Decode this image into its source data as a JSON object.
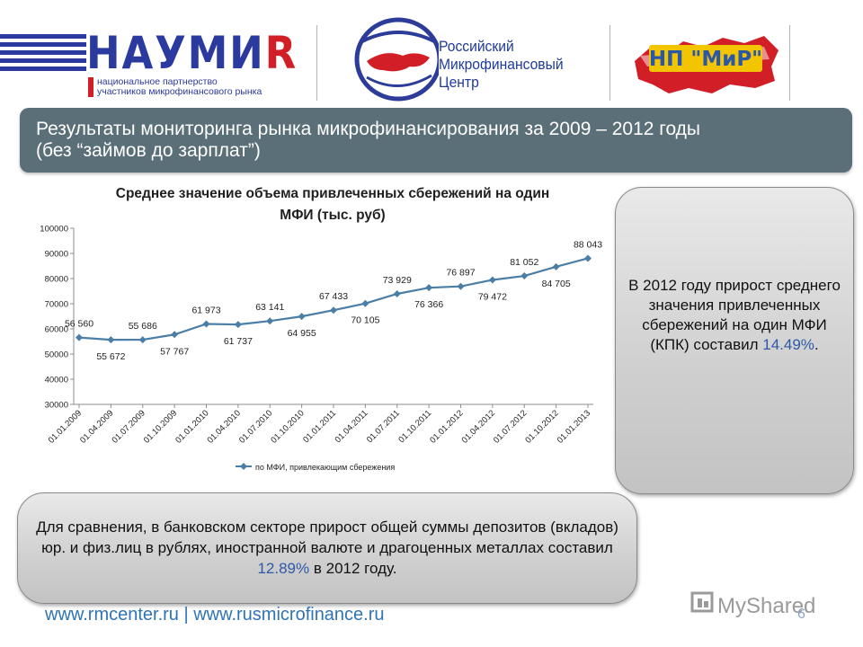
{
  "logos": {
    "naumir": {
      "name": "НАУМИ",
      "name_accent": "R",
      "subtitle_lines": [
        "национальное партнерство",
        "участников микрофинансового рынка"
      ]
    },
    "rmc": {
      "lines": [
        "Российский",
        "Микрофинансовый",
        "Центр"
      ]
    },
    "mir": {
      "name": "НП \"МиР\""
    }
  },
  "header": {
    "title_line1": "Результаты мониторинга рынка микрофинансирования за 2009 – 2012 годы",
    "title_line2": "(без “займов до зарплат”)"
  },
  "chart_data": {
    "type": "line",
    "title_line1": "Среднее значение объема привлеченных сбережений на один",
    "title_line2": "МФИ (тыс. руб)",
    "x": [
      "01.01.2009",
      "01.04.2009",
      "01.07.2009",
      "01.10.2009",
      "01.01.2010",
      "01.04.2010",
      "01.07.2010",
      "01.10.2010",
      "01.01.2011",
      "01.04.2011",
      "01.07.2011",
      "01.10.2011",
      "01.01.2012",
      "01.04.2012",
      "01.07.2012",
      "01.10.2012",
      "01.01.2013"
    ],
    "series": [
      {
        "name": "по МФИ, привлекающим сбережения",
        "values": [
          56560,
          55672,
          55686,
          57767,
          61973,
          61737,
          63141,
          64955,
          67433,
          70105,
          73929,
          76366,
          76897,
          79472,
          81052,
          84705,
          88043
        ],
        "labels": [
          "56 560",
          "55 672",
          "55 686",
          "57 767",
          "61 973",
          "61 737",
          "63 141",
          "64 955",
          "67 433",
          "70 105",
          "73 929",
          "76 366",
          "76 897",
          "79 472",
          "81 052",
          "84 705",
          "88 043"
        ]
      }
    ],
    "y_ticks": [
      30000,
      40000,
      50000,
      60000,
      70000,
      80000,
      90000,
      100000
    ],
    "ylim": [
      30000,
      100000
    ],
    "grid": false,
    "legend_position": "bottom",
    "line_color": "#4a7ea6"
  },
  "right_box": {
    "text": "В 2012 году прирост среднего значения привлеченных сбережений на один МФИ (КПК) составил ",
    "highlight": "14.49%",
    "end": "."
  },
  "bottom_box": {
    "text": "Для сравнения, в банковском секторе прирост общей суммы депозитов (вкладов) юр. и физ.лиц в рублях, иностранной валюте и драгоценных металлах составил ",
    "highlight": "12.89%",
    "end": " в 2012 году."
  },
  "footer": {
    "links": "www.rmcenter.ru | www.rusmicrofinance.ru",
    "page_number": "6",
    "watermark": "MyShared"
  },
  "colors": {
    "title_band": "#5b6f79",
    "highlight": "#2e5aa8",
    "link": "#2e74b5"
  }
}
